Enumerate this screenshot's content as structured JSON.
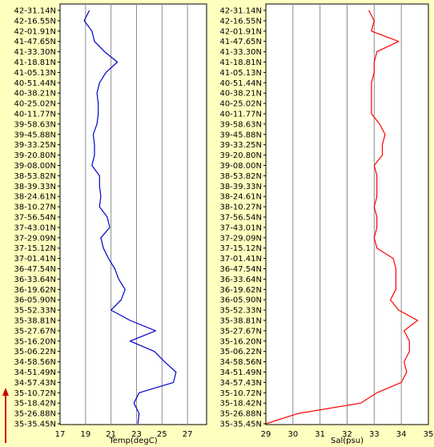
{
  "chart_data": [
    {
      "type": "line",
      "xlabel": "Temp(degC)",
      "ylabel": "",
      "x_ticks": [
        17,
        19,
        21,
        23,
        25,
        27
      ],
      "xlim": [
        17,
        28.5
      ],
      "y_tick_labels": [
        "42-31.14N",
        "42-16.55N",
        "42-01.91N",
        "41-47.65N",
        "41-33.30N",
        "41-18.81N",
        "41-05.13N",
        "40-51.44N",
        "40-38.21N",
        "40-25.02N",
        "40-11.77N",
        "39-58.63N",
        "39-45.88N",
        "39-33.25N",
        "39-20.80N",
        "39-08.00N",
        "38-53.82N",
        "38-39.33N",
        "38-24.61N",
        "38-10.27N",
        "37-56.54N",
        "37-43.01N",
        "37-29.09N",
        "37-15.12N",
        "37-01.41N",
        "36-47.54N",
        "36-33.64N",
        "36-19.62N",
        "36-05.90N",
        "35-52.33N",
        "35-38.81N",
        "35-27.67N",
        "35-16.20N",
        "35-06.22N",
        "34-58.56N",
        "34-51.49N",
        "34-57.43N",
        "35-10.72N",
        "35-18.42N",
        "35-26.88N",
        "35-35.45N"
      ],
      "series": [
        {
          "color": "#0000cc",
          "values": [
            19.3,
            18.9,
            19.5,
            19.7,
            20.5,
            21.5,
            20.6,
            20.1,
            19.9,
            20.0,
            20.0,
            19.9,
            19.6,
            19.7,
            19.7,
            19.5,
            20.1,
            20.1,
            20.2,
            20.1,
            20.7,
            20.9,
            20.2,
            20.4,
            20.8,
            21.3,
            21.6,
            22.1,
            21.8,
            21.0,
            22.5,
            24.5,
            22.5,
            24.4,
            25.2,
            26.1,
            25.9,
            23.2,
            22.8,
            23.2,
            23.1
          ]
        }
      ]
    },
    {
      "type": "line",
      "xlabel": "Sal(psu)",
      "ylabel": "",
      "x_ticks": [
        29,
        30,
        31,
        32,
        33,
        34,
        35
      ],
      "xlim": [
        29,
        35
      ],
      "y_tick_labels": [
        "42-31.14N",
        "42-16.55N",
        "42-01.91N",
        "41-47.65N",
        "41-33.30N",
        "41-18.81N",
        "41-05.13N",
        "40-51.44N",
        "40-38.21N",
        "40-25.02N",
        "40-11.77N",
        "39-58.63N",
        "39-45.88N",
        "39-33.25N",
        "39-20.80N",
        "39-08.00N",
        "38-53.82N",
        "38-39.33N",
        "38-24.61N",
        "38-10.27N",
        "37-56.54N",
        "37-43.01N",
        "37-29.09N",
        "37-15.12N",
        "37-01.41N",
        "36-47.54N",
        "36-33.64N",
        "36-19.62N",
        "36-05.90N",
        "35-52.33N",
        "35-38.81N",
        "35-27.67N",
        "35-16.20N",
        "35-06.22N",
        "34-58.56N",
        "34-51.49N",
        "34-57.43N",
        "35-10.72N",
        "35-18.42N",
        "35-26.88N",
        "35-35.45N"
      ],
      "series": [
        {
          "color": "#ff0000",
          "values": [
            32.8,
            33.0,
            32.9,
            33.9,
            33.1,
            33.0,
            33.0,
            32.9,
            32.9,
            32.9,
            32.9,
            33.2,
            33.4,
            33.3,
            33.3,
            33.0,
            33.1,
            33.1,
            33.1,
            33.0,
            33.1,
            33.1,
            33.0,
            33.1,
            33.7,
            33.8,
            33.8,
            33.8,
            33.6,
            33.9,
            34.6,
            34.1,
            34.3,
            34.3,
            34.1,
            34.2,
            34.0,
            33.1,
            32.5,
            30.2,
            29.0
          ]
        }
      ]
    }
  ],
  "colors": {
    "background": "#ffffc0",
    "plot_area": "#ffffff",
    "grid": "#8c8c8c",
    "arrow": "#cc0000"
  },
  "arrow_icon": "up-arrow-icon"
}
